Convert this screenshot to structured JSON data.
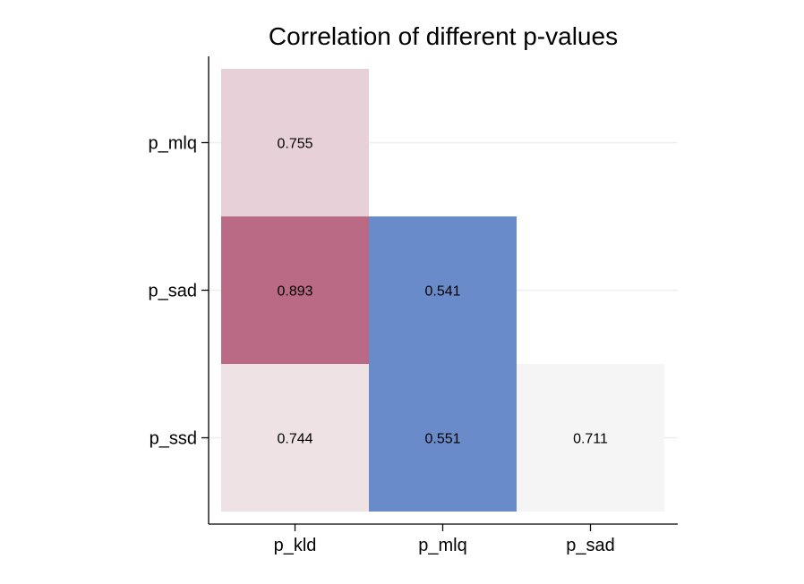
{
  "chart_data": {
    "type": "heatmap",
    "title": "Correlation of different p-values",
    "x_categories": [
      "p_kld",
      "p_mlq",
      "p_sad"
    ],
    "y_categories": [
      "p_mlq",
      "p_sad",
      "p_ssd"
    ],
    "cells": [
      {
        "x": "p_kld",
        "y": "p_mlq",
        "value": 0.755,
        "label": "0.755",
        "color": "#e7d0d7"
      },
      {
        "x": "p_kld",
        "y": "p_sad",
        "value": 0.893,
        "label": "0.893",
        "color": "#bb6a86"
      },
      {
        "x": "p_mlq",
        "y": "p_sad",
        "value": 0.541,
        "label": "0.541",
        "color": "#6a8bca"
      },
      {
        "x": "p_kld",
        "y": "p_ssd",
        "value": 0.744,
        "label": "0.744",
        "color": "#eee2e5"
      },
      {
        "x": "p_mlq",
        "y": "p_ssd",
        "value": 0.551,
        "label": "0.551",
        "color": "#6a8bca"
      },
      {
        "x": "p_sad",
        "y": "p_ssd",
        "value": 0.711,
        "label": "0.711",
        "color": "#f5f5f5"
      }
    ],
    "grid": true,
    "xlabel": "",
    "ylabel": ""
  }
}
